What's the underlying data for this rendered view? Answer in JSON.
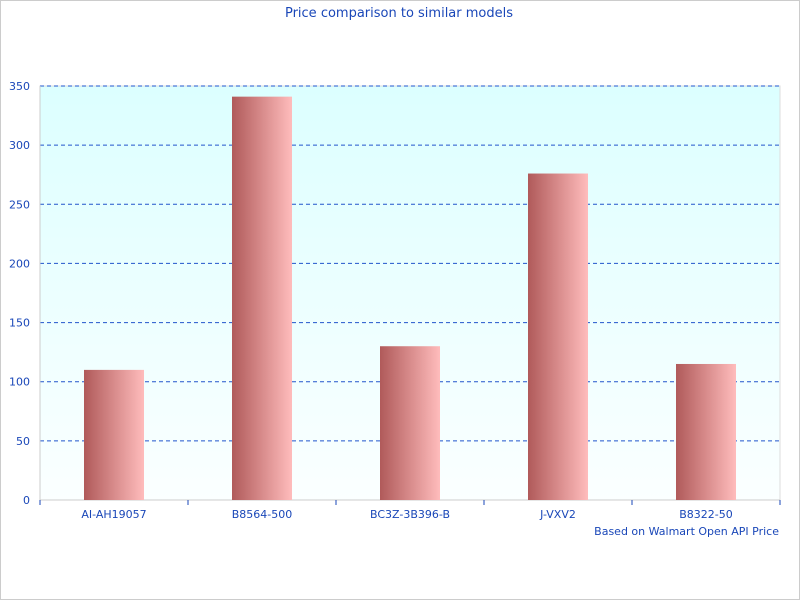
{
  "chart_data": {
    "type": "bar",
    "title": "Price comparison to similar models",
    "categories": [
      "AI-AH19057",
      "B8564-500",
      "BC3Z-3B396-B",
      "J-VXV2",
      "B8322-50"
    ],
    "values": [
      110,
      341,
      130,
      276,
      115
    ],
    "xlabel": "Based on Walmart Open API Price",
    "ylabel": "",
    "ylim": [
      0,
      350
    ],
    "yticks": [
      0,
      50,
      100,
      150,
      200,
      250,
      300,
      350
    ],
    "grid": true,
    "colors": {
      "bar_dark": "#b05a5a",
      "bar_light": "#ffbcbc",
      "text": "#1a47b8",
      "grid": "#2255cc",
      "plot_bg_top": "#dcffff",
      "plot_bg_bottom": "#fbffff"
    }
  }
}
